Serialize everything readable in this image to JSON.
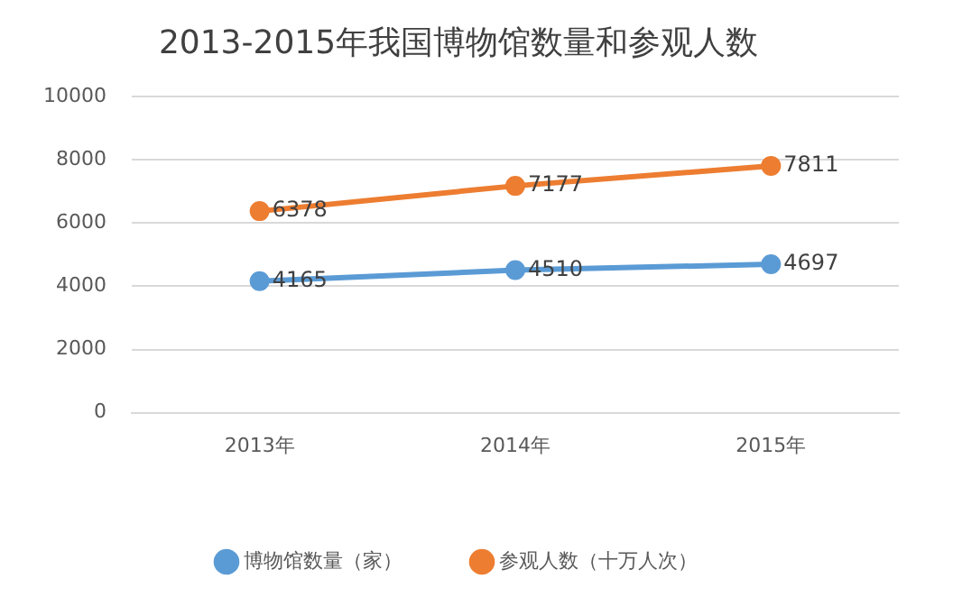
{
  "chart_data": {
    "type": "line",
    "title": "2013-2015年我国博物馆数量和参观人数",
    "categories": [
      "2013年",
      "2014年",
      "2015年"
    ],
    "series": [
      {
        "name": "博物馆数量（家）",
        "color": "#5b9bd5",
        "values": [
          4165,
          4510,
          4697
        ]
      },
      {
        "name": "参观人数（十万人次）",
        "color": "#ed7d31",
        "values": [
          6378,
          7177,
          7811
        ]
      }
    ],
    "ylim": [
      0,
      10000
    ],
    "yticks": [
      0,
      2000,
      4000,
      6000,
      8000,
      10000
    ],
    "grid": "y",
    "legend": "bottom",
    "marker": "circle",
    "line_style": "solid",
    "data_labels": true
  }
}
